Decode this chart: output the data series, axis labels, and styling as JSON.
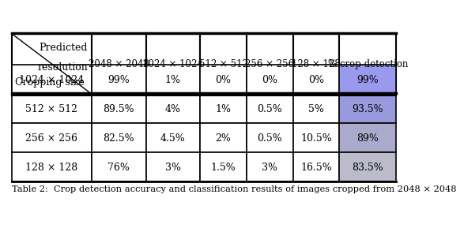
{
  "header_row": [
    "2048 × 2048",
    "1024 × 1024",
    "512 × 512",
    "256 × 256",
    "128 × 128",
    "% crop detection"
  ],
  "row_labels": [
    "1024 × 1024",
    "512 × 512",
    "256 × 256",
    "128 × 128"
  ],
  "data": [
    [
      "99%",
      "1%",
      "0%",
      "0%",
      "0%",
      "99%"
    ],
    [
      "89.5%",
      "4%",
      "1%",
      "0.5%",
      "5%",
      "93.5%"
    ],
    [
      "82.5%",
      "4.5%",
      "2%",
      "0.5%",
      "10.5%",
      "89%"
    ],
    [
      "76%",
      "3%",
      "1.5%",
      "3%",
      "16.5%",
      "83.5%"
    ]
  ],
  "highlight_colors": [
    "#9999ee",
    "#9999dd",
    "#aaaacc",
    "#bbbbcc"
  ],
  "caption": "Table 2:  Crop detection accuracy and classification results of images cropped from 2048 × 2048",
  "header_top_label": "Predicted",
  "header_mid_label": "resolution",
  "corner_label": "Cropping size",
  "bg_color": "#ffffff"
}
